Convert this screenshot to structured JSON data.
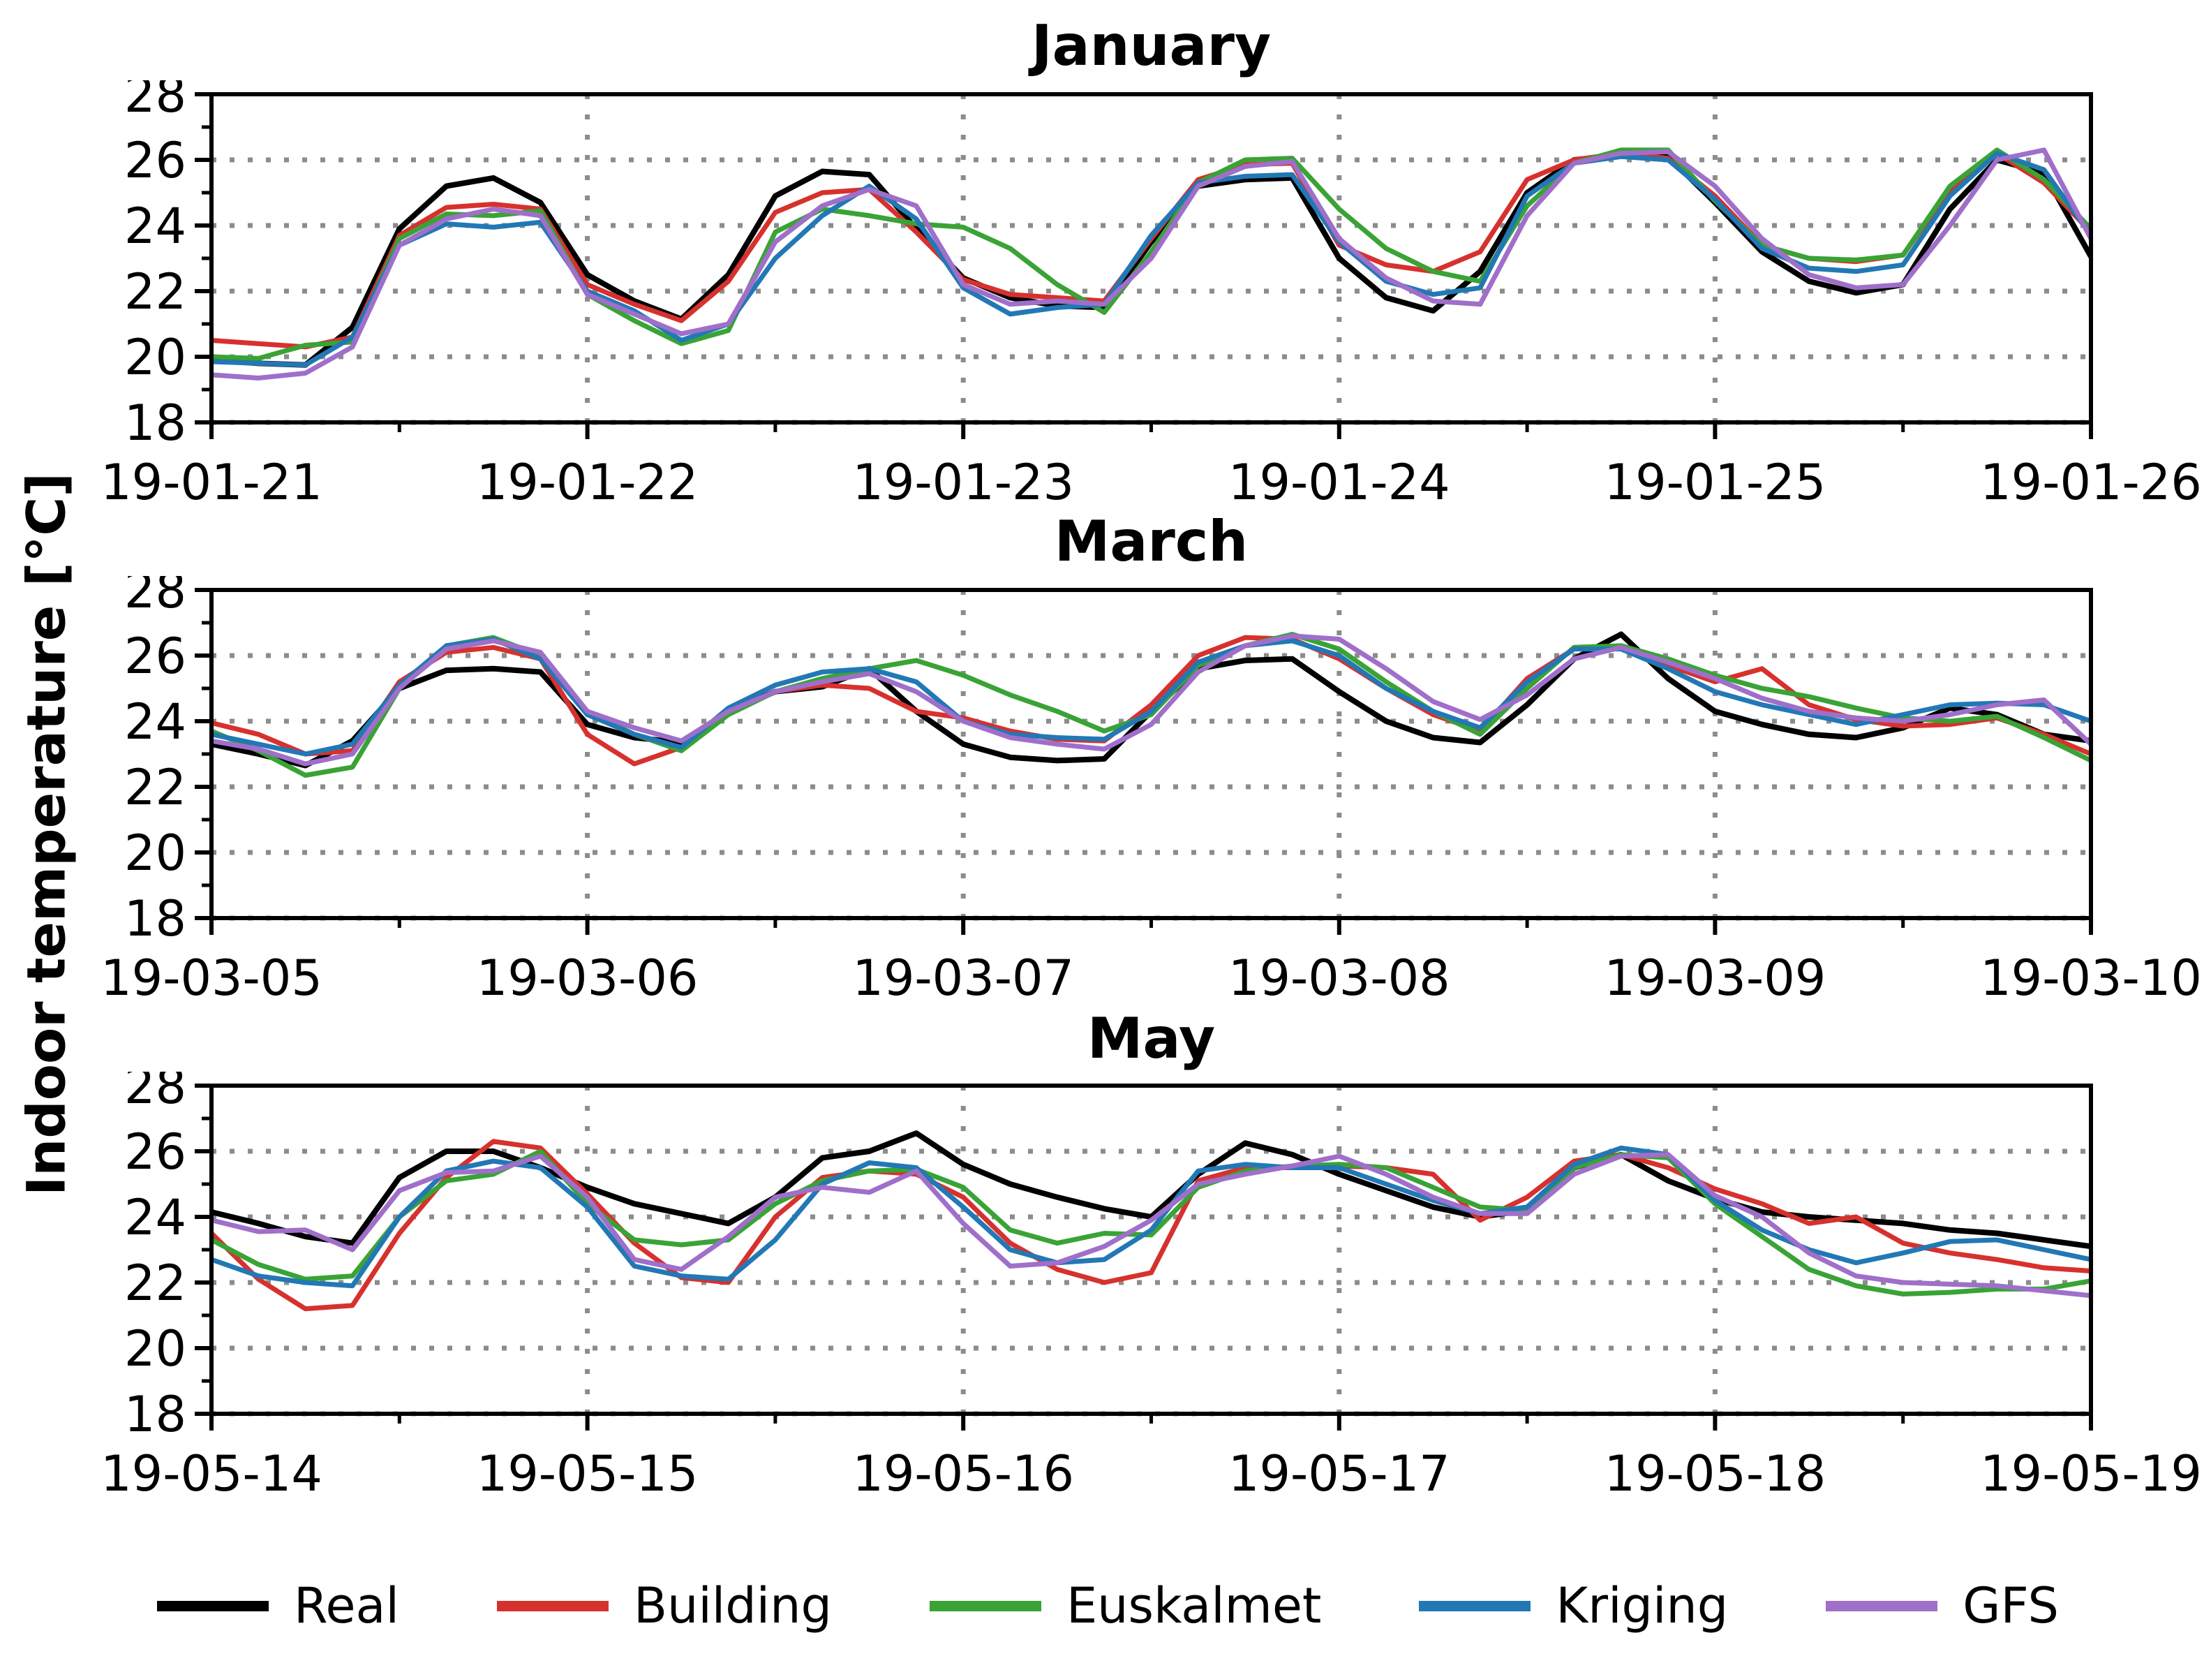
{
  "figure": {
    "ylabel": "Indoor temperature [°C]"
  },
  "legend": [
    {
      "label": "Real",
      "color": "#000000"
    },
    {
      "label": "Building",
      "color": "#d7312e"
    },
    {
      "label": "Euskalmet",
      "color": "#39a335"
    },
    {
      "label": "Kriging",
      "color": "#2278b5"
    },
    {
      "label": "GFS",
      "color": "#9f6fca"
    }
  ],
  "chart_data": [
    {
      "type": "line",
      "title": "January",
      "ylim": [
        18,
        28
      ],
      "y_ticks": [
        18,
        20,
        22,
        24,
        26,
        28
      ],
      "x_tick_labels": [
        "19-01-21",
        "19-01-22",
        "19-01-23",
        "19-01-24",
        "19-01-25",
        "19-01-26"
      ],
      "x_start_hour": 0,
      "x_step_hours": 3,
      "x_total_hours": 120,
      "grid": true,
      "series": [
        {
          "name": "Real",
          "color": "#000000",
          "values": [
            19.9,
            19.8,
            19.75,
            20.9,
            23.9,
            25.2,
            25.45,
            24.7,
            22.5,
            21.7,
            21.15,
            22.5,
            24.9,
            25.65,
            25.55,
            23.9,
            22.4,
            21.8,
            21.55,
            21.5,
            23.5,
            25.2,
            25.4,
            25.45,
            23.0,
            21.8,
            21.4,
            22.6,
            25.0,
            26.0,
            26.15,
            26.1,
            24.7,
            23.2,
            22.3,
            21.95,
            22.2,
            24.5,
            26.0,
            25.6,
            23.05
          ]
        },
        {
          "name": "Building",
          "color": "#d7312e",
          "values": [
            20.5,
            20.4,
            20.3,
            20.6,
            23.7,
            24.55,
            24.65,
            24.5,
            22.2,
            21.6,
            21.1,
            22.3,
            24.4,
            25.0,
            25.1,
            23.8,
            22.35,
            21.9,
            21.8,
            21.7,
            23.6,
            25.4,
            25.85,
            25.9,
            23.4,
            22.8,
            22.6,
            23.2,
            25.4,
            26.0,
            26.2,
            26.05,
            24.9,
            23.4,
            23.0,
            22.9,
            23.1,
            25.1,
            26.2,
            25.3,
            23.8
          ]
        },
        {
          "name": "Euskalmet",
          "color": "#39a335",
          "values": [
            20.0,
            19.95,
            20.35,
            20.45,
            23.6,
            24.35,
            24.3,
            24.45,
            21.9,
            21.1,
            20.4,
            20.8,
            23.8,
            24.5,
            24.3,
            24.05,
            23.95,
            23.3,
            22.2,
            21.35,
            23.2,
            25.3,
            26.0,
            26.05,
            24.5,
            23.3,
            22.6,
            22.3,
            24.6,
            25.9,
            26.3,
            26.3,
            24.75,
            23.4,
            23.0,
            22.95,
            23.1,
            25.2,
            26.3,
            25.4,
            23.9
          ]
        },
        {
          "name": "Kriging",
          "color": "#2278b5",
          "values": [
            19.85,
            19.8,
            19.75,
            20.6,
            23.4,
            24.05,
            23.95,
            24.1,
            22.0,
            21.4,
            20.5,
            21.0,
            23.0,
            24.3,
            25.2,
            24.2,
            22.1,
            21.3,
            21.5,
            21.6,
            23.7,
            25.3,
            25.5,
            25.55,
            23.5,
            22.3,
            21.9,
            22.1,
            24.9,
            25.9,
            26.1,
            26.0,
            24.8,
            23.3,
            22.7,
            22.6,
            22.8,
            24.9,
            26.2,
            25.7,
            23.7
          ]
        },
        {
          "name": "GFS",
          "color": "#9f6fca",
          "values": [
            19.45,
            19.35,
            19.5,
            20.3,
            23.4,
            24.2,
            24.5,
            24.3,
            21.9,
            21.3,
            20.7,
            21.0,
            23.5,
            24.6,
            25.1,
            24.6,
            22.2,
            21.6,
            21.7,
            21.6,
            23.0,
            25.2,
            25.8,
            25.95,
            23.6,
            22.4,
            21.7,
            21.6,
            24.3,
            25.9,
            26.2,
            26.25,
            25.2,
            23.6,
            22.5,
            22.1,
            22.2,
            24.0,
            26.0,
            26.3,
            23.6
          ]
        }
      ]
    },
    {
      "type": "line",
      "title": "March",
      "ylim": [
        18,
        28
      ],
      "y_ticks": [
        18,
        20,
        22,
        24,
        26,
        28
      ],
      "x_tick_labels": [
        "19-03-05",
        "19-03-06",
        "19-03-07",
        "19-03-08",
        "19-03-09",
        "19-03-10"
      ],
      "x_start_hour": 0,
      "x_step_hours": 3,
      "x_total_hours": 120,
      "grid": true,
      "series": [
        {
          "name": "Real",
          "color": "#000000",
          "values": [
            23.3,
            23.0,
            22.65,
            23.4,
            25.0,
            25.55,
            25.6,
            25.5,
            23.9,
            23.5,
            23.35,
            24.3,
            24.9,
            25.05,
            25.6,
            24.3,
            23.3,
            22.9,
            22.8,
            22.85,
            24.3,
            25.6,
            25.85,
            25.9,
            24.9,
            24.0,
            23.5,
            23.35,
            24.5,
            25.9,
            26.65,
            25.3,
            24.3,
            23.9,
            23.6,
            23.5,
            23.8,
            24.4,
            24.2,
            23.6,
            23.4
          ]
        },
        {
          "name": "Building",
          "color": "#d7312e",
          "values": [
            23.95,
            23.6,
            23.0,
            23.1,
            25.2,
            26.1,
            26.25,
            25.9,
            23.6,
            22.7,
            23.2,
            24.3,
            24.9,
            25.1,
            25.0,
            24.3,
            24.1,
            23.7,
            23.45,
            23.4,
            24.5,
            26.0,
            26.55,
            26.5,
            25.9,
            25.0,
            24.2,
            23.7,
            25.3,
            26.2,
            26.3,
            25.7,
            25.2,
            25.6,
            24.5,
            24.05,
            23.85,
            23.9,
            24.1,
            23.6,
            23.0
          ]
        },
        {
          "name": "Euskalmet",
          "color": "#39a335",
          "values": [
            23.7,
            23.1,
            22.35,
            22.6,
            25.0,
            26.3,
            26.55,
            26.0,
            24.3,
            23.6,
            23.1,
            24.2,
            24.9,
            25.3,
            25.6,
            25.85,
            25.4,
            24.8,
            24.3,
            23.7,
            24.2,
            25.7,
            26.3,
            26.65,
            26.2,
            25.2,
            24.3,
            23.6,
            25.0,
            26.25,
            26.3,
            25.9,
            25.4,
            25.0,
            24.75,
            24.4,
            24.1,
            24.0,
            24.15,
            23.5,
            22.8
          ]
        },
        {
          "name": "Kriging",
          "color": "#2278b5",
          "values": [
            23.6,
            23.3,
            23.0,
            23.3,
            25.1,
            26.3,
            26.5,
            25.9,
            24.2,
            23.6,
            23.2,
            24.4,
            25.1,
            25.5,
            25.6,
            25.2,
            24.0,
            23.6,
            23.5,
            23.45,
            24.3,
            25.8,
            26.3,
            26.45,
            26.0,
            25.0,
            24.3,
            23.8,
            25.2,
            26.2,
            26.2,
            25.6,
            24.9,
            24.5,
            24.2,
            23.9,
            24.2,
            24.5,
            24.55,
            24.5,
            24.0
          ]
        },
        {
          "name": "GFS",
          "color": "#9f6fca",
          "values": [
            23.4,
            23.15,
            22.7,
            23.0,
            25.0,
            26.2,
            26.45,
            26.1,
            24.3,
            23.8,
            23.4,
            24.3,
            24.9,
            25.2,
            25.45,
            24.9,
            24.0,
            23.5,
            23.3,
            23.15,
            23.9,
            25.5,
            26.3,
            26.6,
            26.5,
            25.6,
            24.6,
            24.05,
            24.8,
            25.9,
            26.25,
            25.8,
            25.3,
            24.7,
            24.3,
            24.1,
            24.0,
            24.2,
            24.5,
            24.65,
            23.3
          ]
        }
      ]
    },
    {
      "type": "line",
      "title": "May",
      "ylim": [
        18,
        28
      ],
      "y_ticks": [
        18,
        20,
        22,
        24,
        26,
        28
      ],
      "x_tick_labels": [
        "19-05-14",
        "19-05-15",
        "19-05-16",
        "19-05-17",
        "19-05-18",
        "19-05-19"
      ],
      "x_start_hour": 0,
      "x_step_hours": 3,
      "x_total_hours": 120,
      "grid": true,
      "series": [
        {
          "name": "Real",
          "color": "#000000",
          "values": [
            24.15,
            23.8,
            23.4,
            23.2,
            25.2,
            26.0,
            26.0,
            25.5,
            24.9,
            24.4,
            24.1,
            23.8,
            24.6,
            25.8,
            26.0,
            26.55,
            25.6,
            25.0,
            24.6,
            24.25,
            24.0,
            25.3,
            26.25,
            25.9,
            25.3,
            24.8,
            24.3,
            24.0,
            24.2,
            25.5,
            25.9,
            25.1,
            24.55,
            24.15,
            24.0,
            23.9,
            23.8,
            23.6,
            23.5,
            23.3,
            23.1
          ]
        },
        {
          "name": "Building",
          "color": "#d7312e",
          "values": [
            23.5,
            22.1,
            21.2,
            21.3,
            23.5,
            25.2,
            26.3,
            26.1,
            24.7,
            23.2,
            22.15,
            22.0,
            24.0,
            25.2,
            25.4,
            25.3,
            24.6,
            23.2,
            22.4,
            22.0,
            22.3,
            25.1,
            25.5,
            25.5,
            25.55,
            25.5,
            25.3,
            23.9,
            24.6,
            25.7,
            25.9,
            25.5,
            24.85,
            24.4,
            23.8,
            24.0,
            23.2,
            22.9,
            22.7,
            22.45,
            22.35
          ]
        },
        {
          "name": "Euskalmet",
          "color": "#39a335",
          "values": [
            23.3,
            22.55,
            22.1,
            22.2,
            24.0,
            25.1,
            25.3,
            26.0,
            24.4,
            23.3,
            23.15,
            23.3,
            24.4,
            25.1,
            25.4,
            25.45,
            24.9,
            23.6,
            23.2,
            23.5,
            23.45,
            24.9,
            25.4,
            25.55,
            25.6,
            25.5,
            24.9,
            24.3,
            24.2,
            25.5,
            25.9,
            25.8,
            24.4,
            23.4,
            22.4,
            21.9,
            21.65,
            21.7,
            21.8,
            21.8,
            22.05
          ]
        },
        {
          "name": "Kriging",
          "color": "#2278b5",
          "values": [
            22.7,
            22.2,
            22.0,
            21.9,
            24.0,
            25.4,
            25.7,
            25.5,
            24.3,
            22.5,
            22.2,
            22.1,
            23.3,
            25.0,
            25.65,
            25.5,
            24.3,
            23.0,
            22.6,
            22.7,
            23.6,
            25.4,
            25.6,
            25.5,
            25.5,
            25.0,
            24.5,
            24.1,
            24.3,
            25.6,
            26.1,
            25.9,
            24.5,
            23.6,
            23.0,
            22.6,
            22.9,
            23.25,
            23.3,
            23.0,
            22.7
          ]
        },
        {
          "name": "GFS",
          "color": "#9f6fca",
          "values": [
            23.9,
            23.55,
            23.6,
            23.0,
            24.8,
            25.35,
            25.4,
            25.85,
            24.6,
            22.7,
            22.4,
            23.4,
            24.6,
            24.9,
            24.75,
            25.4,
            23.8,
            22.5,
            22.6,
            23.1,
            23.9,
            25.0,
            25.3,
            25.55,
            25.85,
            25.3,
            24.6,
            24.1,
            24.1,
            25.3,
            25.85,
            25.9,
            24.65,
            24.0,
            22.9,
            22.2,
            22.0,
            21.95,
            21.9,
            21.75,
            21.6
          ]
        }
      ]
    }
  ],
  "style": {
    "grid_color": "#8c8c8c",
    "axis_color": "#000000"
  }
}
